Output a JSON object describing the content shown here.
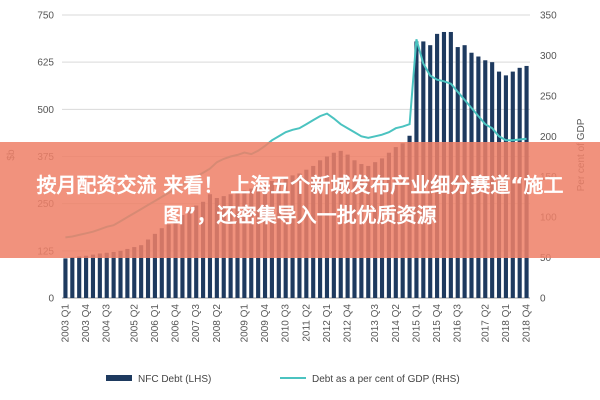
{
  "overlay": {
    "headline": "按月配资交流 来看！ 上海五个新城发布产业细分赛道“施工图”，还密集导入一批优质资源"
  },
  "colors": {
    "bar": "#1e3a5f",
    "line": "#4bc3c0",
    "banner": "#ef8068",
    "grid": "#d9d9d9"
  },
  "chart_data": {
    "type": "bar",
    "title": "",
    "ylabel_left": "$b",
    "ylabel_right": "Per cent of GDP",
    "ylim_left": [
      0,
      750
    ],
    "ylim_right": [
      0,
      350
    ],
    "yticks_left": [
      "0",
      "125",
      "250",
      "375",
      "500",
      "625",
      "750"
    ],
    "yticks_right": [
      "0",
      "50",
      "100",
      "150",
      "200",
      "250",
      "300",
      "350"
    ],
    "xtick_labels": [
      "2003 Q1",
      "2003 Q4",
      "2004 Q3",
      "2005 Q2",
      "2006 Q1",
      "2006 Q4",
      "2007 Q3",
      "2008 Q2",
      "2009 Q1",
      "2009 Q4",
      "2010 Q3",
      "2011 Q2",
      "2012 Q1",
      "2012 Q4",
      "2013 Q3",
      "2014 Q2",
      "2015 Q1",
      "2015 Q4",
      "2016 Q3",
      "2017 Q2",
      "2018 Q1",
      "2018 Q4"
    ],
    "legend_position": "bottom",
    "series": [
      {
        "name": "NFC Debt (LHS)",
        "type": "bar",
        "axis": "left",
        "values": [
          105,
          108,
          110,
          112,
          115,
          118,
          120,
          122,
          125,
          130,
          135,
          140,
          155,
          170,
          185,
          195,
          205,
          220,
          235,
          245,
          255,
          275,
          265,
          270,
          275,
          280,
          285,
          290,
          295,
          300,
          310,
          315,
          320,
          325,
          330,
          340,
          350,
          365,
          375,
          385,
          390,
          380,
          365,
          355,
          350,
          360,
          370,
          385,
          400,
          410,
          430,
          680,
          680,
          670,
          700,
          705,
          705,
          665,
          670,
          650,
          640,
          630,
          625,
          600,
          590,
          600,
          610,
          615
        ]
      },
      {
        "name": "Debt as a per cent of GDP (RHS)",
        "type": "line",
        "axis": "right",
        "values": [
          75,
          76,
          78,
          80,
          82,
          85,
          88,
          90,
          95,
          100,
          105,
          110,
          115,
          120,
          125,
          130,
          135,
          140,
          145,
          150,
          155,
          160,
          168,
          172,
          175,
          177,
          180,
          178,
          182,
          188,
          195,
          200,
          205,
          208,
          210,
          215,
          220,
          225,
          228,
          222,
          215,
          210,
          205,
          200,
          198,
          200,
          202,
          205,
          210,
          212,
          215,
          320,
          290,
          275,
          270,
          268,
          265,
          255,
          245,
          235,
          225,
          215,
          210,
          200,
          195,
          195,
          196,
          197
        ]
      }
    ]
  }
}
